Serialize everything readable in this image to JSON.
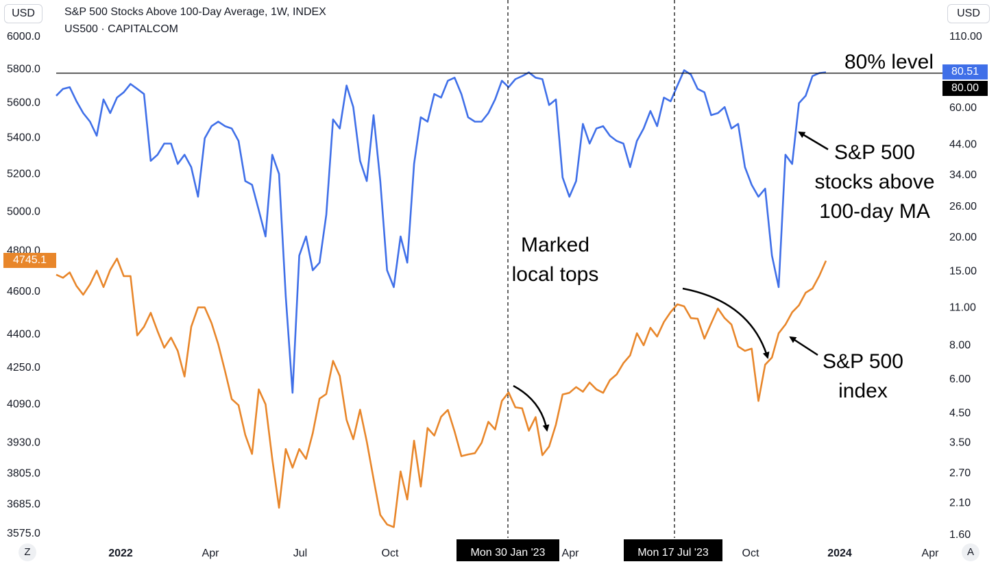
{
  "header": {
    "currency_left": "USD",
    "currency_right": "USD",
    "title": "S&P 500 Stocks Above 100-Day Average, 1W, INDEX",
    "subtitle": "US500 · CAPITALCOM"
  },
  "corner": {
    "left": "Z",
    "right": "A"
  },
  "price_tags": {
    "sp500": {
      "label": "4745.1",
      "color": "#e8862a"
    },
    "breadth": {
      "label": "80.51",
      "color": "#3f6fe8"
    },
    "level": {
      "label": "80.00",
      "color": "#000000"
    }
  },
  "annotations": {
    "level_80": "80% level",
    "breadth_label": [
      "S&P 500",
      "stocks above",
      "100-day MA"
    ],
    "sp500_label": [
      "S&P 500",
      "index"
    ],
    "local_tops": [
      "Marked",
      "local tops"
    ]
  },
  "crosshair_labels": [
    "Mon 30 Jan '23",
    "Mon 17 Jul '23"
  ],
  "chart_data": {
    "type": "line",
    "x_ticks": [
      {
        "label": "2022",
        "bold": true
      },
      {
        "label": "Apr",
        "bold": false
      },
      {
        "label": "Jul",
        "bold": false
      },
      {
        "label": "Oct",
        "bold": false
      },
      {
        "label": "Apr",
        "bold": false
      },
      {
        "label": "Oct",
        "bold": false
      },
      {
        "label": "2024",
        "bold": true
      },
      {
        "label": "Apr",
        "bold": false
      }
    ],
    "left_axis_ticks": [
      "6000.0",
      "5800.0",
      "5600.0",
      "5400.0",
      "5200.0",
      "5000.0",
      "4800.0",
      "4600.0",
      "4400.0",
      "4250.0",
      "4090.0",
      "3930.0",
      "3805.0",
      "3685.0",
      "3575.0"
    ],
    "right_axis_ticks": [
      "110.00",
      "60.00",
      "44.00",
      "34.00",
      "26.00",
      "20.00",
      "15.00",
      "11.00",
      "8.00",
      "6.00",
      "4.50",
      "3.50",
      "2.70",
      "2.10",
      "1.60"
    ],
    "level_line": 80,
    "colors": {
      "breadth": "#3f6fe8",
      "sp500": "#e8862a"
    },
    "series": [
      {
        "name": "S&P 500 stocks above 100-day MA",
        "axis": "right",
        "values": [
          66,
          70,
          71,
          63,
          57,
          53,
          47,
          64,
          57,
          65,
          68,
          73,
          70,
          67,
          38,
          40,
          44,
          44,
          37,
          40,
          36,
          28,
          46,
          51,
          53,
          51,
          50,
          45,
          32,
          31,
          25,
          20,
          40,
          34,
          12,
          5.3,
          17,
          20,
          15,
          16,
          24,
          54,
          50,
          72,
          60,
          38,
          32,
          56,
          32,
          15,
          13,
          20,
          16,
          37,
          55,
          53,
          67,
          65,
          75,
          77,
          67,
          55,
          53,
          53,
          57,
          64,
          75,
          71,
          76,
          78,
          80.5,
          77,
          76,
          61,
          64,
          33,
          28,
          32,
          52,
          44,
          50,
          51,
          47,
          45,
          44,
          36,
          45,
          50,
          58,
          51,
          65,
          63,
          72,
          82,
          79,
          70,
          68,
          56,
          57,
          60,
          50,
          52,
          36,
          31,
          28,
          30,
          17,
          13,
          40,
          37,
          62,
          66,
          78,
          80,
          80.51
        ]
      },
      {
        "name": "S&P 500 index",
        "axis": "left",
        "values": [
          4677,
          4662,
          4688,
          4622,
          4580,
          4630,
          4697,
          4617,
          4700,
          4756,
          4670,
          4670,
          4390,
          4430,
          4495,
          4410,
          4334,
          4380,
          4320,
          4206,
          4430,
          4520,
          4520,
          4447,
          4350,
          4230,
          4108,
          4082,
          3958,
          3880,
          4150,
          4086,
          3860,
          3668,
          3900,
          3825,
          3900,
          3860,
          3965,
          4110,
          4130,
          4275,
          4208,
          4020,
          3940,
          4063,
          3930,
          3780,
          3641,
          3605,
          3595,
          3810,
          3700,
          3934,
          3750,
          3986,
          3955,
          4033,
          4062,
          3972,
          3871,
          3878,
          3883,
          3925,
          4012,
          3980,
          4100,
          4137,
          4073,
          4069,
          3975,
          4032,
          3875,
          3910,
          4000,
          4128,
          4135,
          4160,
          4140,
          4180,
          4150,
          4135,
          4190,
          4215,
          4265,
          4300,
          4400,
          4345,
          4425,
          4385,
          4452,
          4498,
          4535,
          4525,
          4470,
          4467,
          4375,
          4445,
          4515,
          4470,
          4440,
          4340,
          4320,
          4330,
          4100,
          4258,
          4290,
          4400,
          4440,
          4497,
          4530,
          4590,
          4610,
          4670,
          4745.1
        ]
      }
    ],
    "vertical_markers": [
      "Mon 30 Jan '23",
      "Mon 17 Jul '23"
    ]
  }
}
